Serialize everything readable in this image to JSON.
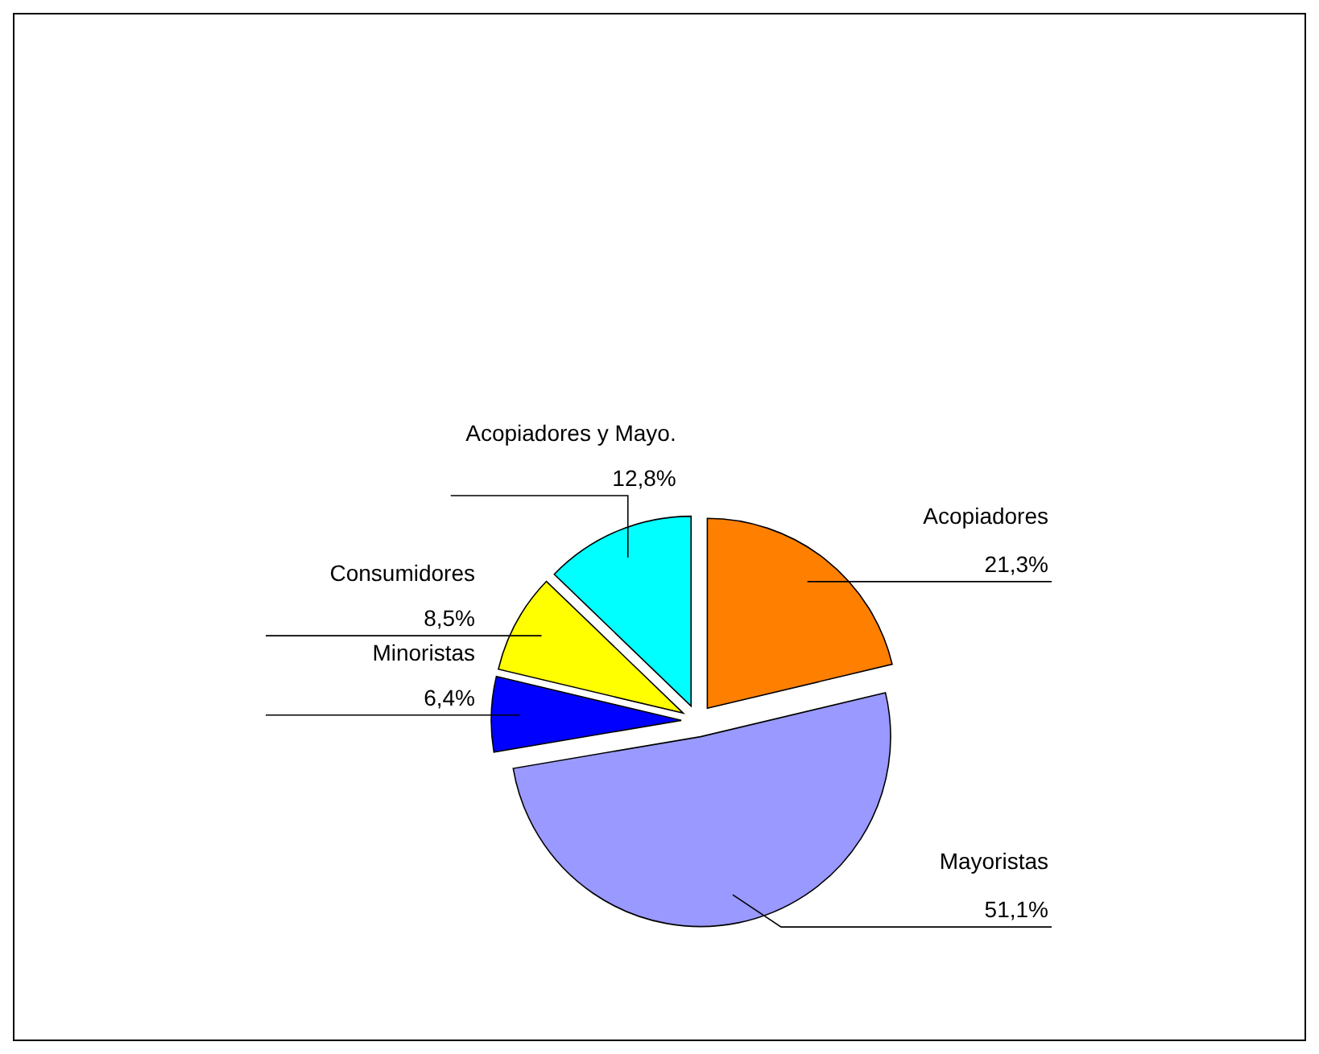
{
  "chart_data": {
    "type": "pie",
    "categories": [
      "Acopiadores",
      "Mayoristas",
      "Minoristas",
      "Consumidores",
      "Acopiadores y Mayo."
    ],
    "values": [
      21.3,
      51.1,
      6.4,
      8.5,
      12.8
    ],
    "colors": [
      "#ff8000",
      "#9999ff",
      "#0000ff",
      "#ffff00",
      "#00ffff"
    ],
    "value_labels": [
      "21,3%",
      "51,1%",
      "6,4%",
      "8,5%",
      "12,8%"
    ]
  }
}
